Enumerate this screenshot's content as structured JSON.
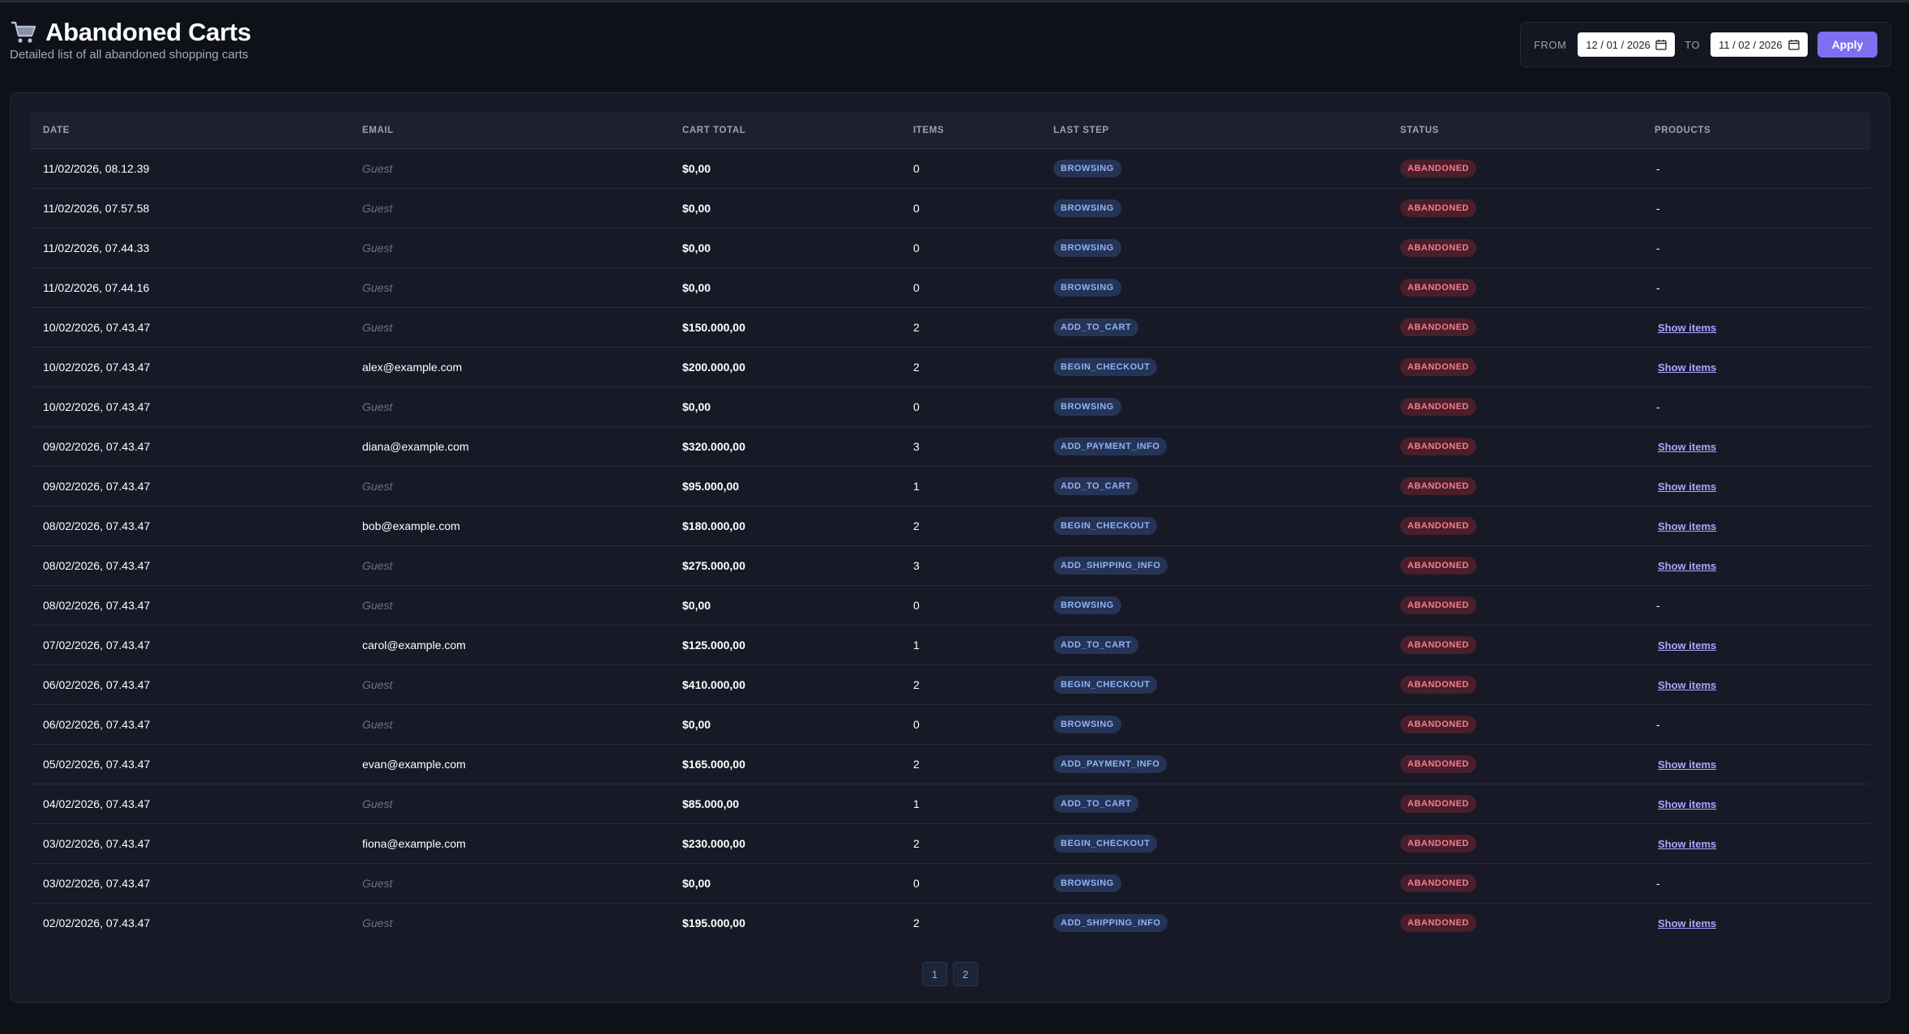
{
  "header": {
    "icon": "shopping-cart-icon",
    "title": "Abandoned Carts",
    "subtitle": "Detailed list of all abandoned shopping carts"
  },
  "filter": {
    "from_label": "FROM",
    "from_value": "12 / 01 / 2026",
    "to_label": "TO",
    "to_value": "11 / 02 / 2026",
    "apply_label": "Apply"
  },
  "table": {
    "columns": [
      "DATE",
      "EMAIL",
      "CART TOTAL",
      "ITEMS",
      "LAST STEP",
      "STATUS",
      "PRODUCTS"
    ],
    "rows": [
      {
        "date": "11/02/2026, 08.12.39",
        "email": "Guest",
        "guest": true,
        "total": "$0,00",
        "items": "0",
        "step": "BROWSING",
        "status": "ABANDONED",
        "products": "-"
      },
      {
        "date": "11/02/2026, 07.57.58",
        "email": "Guest",
        "guest": true,
        "total": "$0,00",
        "items": "0",
        "step": "BROWSING",
        "status": "ABANDONED",
        "products": "-"
      },
      {
        "date": "11/02/2026, 07.44.33",
        "email": "Guest",
        "guest": true,
        "total": "$0,00",
        "items": "0",
        "step": "BROWSING",
        "status": "ABANDONED",
        "products": "-"
      },
      {
        "date": "11/02/2026, 07.44.16",
        "email": "Guest",
        "guest": true,
        "total": "$0,00",
        "items": "0",
        "step": "BROWSING",
        "status": "ABANDONED",
        "products": "-"
      },
      {
        "date": "10/02/2026, 07.43.47",
        "email": "Guest",
        "guest": true,
        "total": "$150.000,00",
        "items": "2",
        "step": "ADD_TO_CART",
        "status": "ABANDONED",
        "products": "Show items"
      },
      {
        "date": "10/02/2026, 07.43.47",
        "email": "alex@example.com",
        "guest": false,
        "total": "$200.000,00",
        "items": "2",
        "step": "BEGIN_CHECKOUT",
        "status": "ABANDONED",
        "products": "Show items"
      },
      {
        "date": "10/02/2026, 07.43.47",
        "email": "Guest",
        "guest": true,
        "total": "$0,00",
        "items": "0",
        "step": "BROWSING",
        "status": "ABANDONED",
        "products": "-"
      },
      {
        "date": "09/02/2026, 07.43.47",
        "email": "diana@example.com",
        "guest": false,
        "total": "$320.000,00",
        "items": "3",
        "step": "ADD_PAYMENT_INFO",
        "status": "ABANDONED",
        "products": "Show items"
      },
      {
        "date": "09/02/2026, 07.43.47",
        "email": "Guest",
        "guest": true,
        "total": "$95.000,00",
        "items": "1",
        "step": "ADD_TO_CART",
        "status": "ABANDONED",
        "products": "Show items"
      },
      {
        "date": "08/02/2026, 07.43.47",
        "email": "bob@example.com",
        "guest": false,
        "total": "$180.000,00",
        "items": "2",
        "step": "BEGIN_CHECKOUT",
        "status": "ABANDONED",
        "products": "Show items"
      },
      {
        "date": "08/02/2026, 07.43.47",
        "email": "Guest",
        "guest": true,
        "total": "$275.000,00",
        "items": "3",
        "step": "ADD_SHIPPING_INFO",
        "status": "ABANDONED",
        "products": "Show items"
      },
      {
        "date": "08/02/2026, 07.43.47",
        "email": "Guest",
        "guest": true,
        "total": "$0,00",
        "items": "0",
        "step": "BROWSING",
        "status": "ABANDONED",
        "products": "-"
      },
      {
        "date": "07/02/2026, 07.43.47",
        "email": "carol@example.com",
        "guest": false,
        "total": "$125.000,00",
        "items": "1",
        "step": "ADD_TO_CART",
        "status": "ABANDONED",
        "products": "Show items"
      },
      {
        "date": "06/02/2026, 07.43.47",
        "email": "Guest",
        "guest": true,
        "total": "$410.000,00",
        "items": "2",
        "step": "BEGIN_CHECKOUT",
        "status": "ABANDONED",
        "products": "Show items"
      },
      {
        "date": "06/02/2026, 07.43.47",
        "email": "Guest",
        "guest": true,
        "total": "$0,00",
        "items": "0",
        "step": "BROWSING",
        "status": "ABANDONED",
        "products": "-"
      },
      {
        "date": "05/02/2026, 07.43.47",
        "email": "evan@example.com",
        "guest": false,
        "total": "$165.000,00",
        "items": "2",
        "step": "ADD_PAYMENT_INFO",
        "status": "ABANDONED",
        "products": "Show items"
      },
      {
        "date": "04/02/2026, 07.43.47",
        "email": "Guest",
        "guest": true,
        "total": "$85.000,00",
        "items": "1",
        "step": "ADD_TO_CART",
        "status": "ABANDONED",
        "products": "Show items"
      },
      {
        "date": "03/02/2026, 07.43.47",
        "email": "fiona@example.com",
        "guest": false,
        "total": "$230.000,00",
        "items": "2",
        "step": "BEGIN_CHECKOUT",
        "status": "ABANDONED",
        "products": "Show items"
      },
      {
        "date": "03/02/2026, 07.43.47",
        "email": "Guest",
        "guest": true,
        "total": "$0,00",
        "items": "0",
        "step": "BROWSING",
        "status": "ABANDONED",
        "products": "-"
      },
      {
        "date": "02/02/2026, 07.43.47",
        "email": "Guest",
        "guest": true,
        "total": "$195.000,00",
        "items": "2",
        "step": "ADD_SHIPPING_INFO",
        "status": "ABANDONED",
        "products": "Show items"
      }
    ]
  },
  "pagination": {
    "pages": [
      "1",
      "2"
    ]
  },
  "colors": {
    "background": "#0f1119",
    "card": "#171a26",
    "accent": "#7c6ff0",
    "step_badge": "#253456",
    "status_badge": "#4a1e2a"
  }
}
